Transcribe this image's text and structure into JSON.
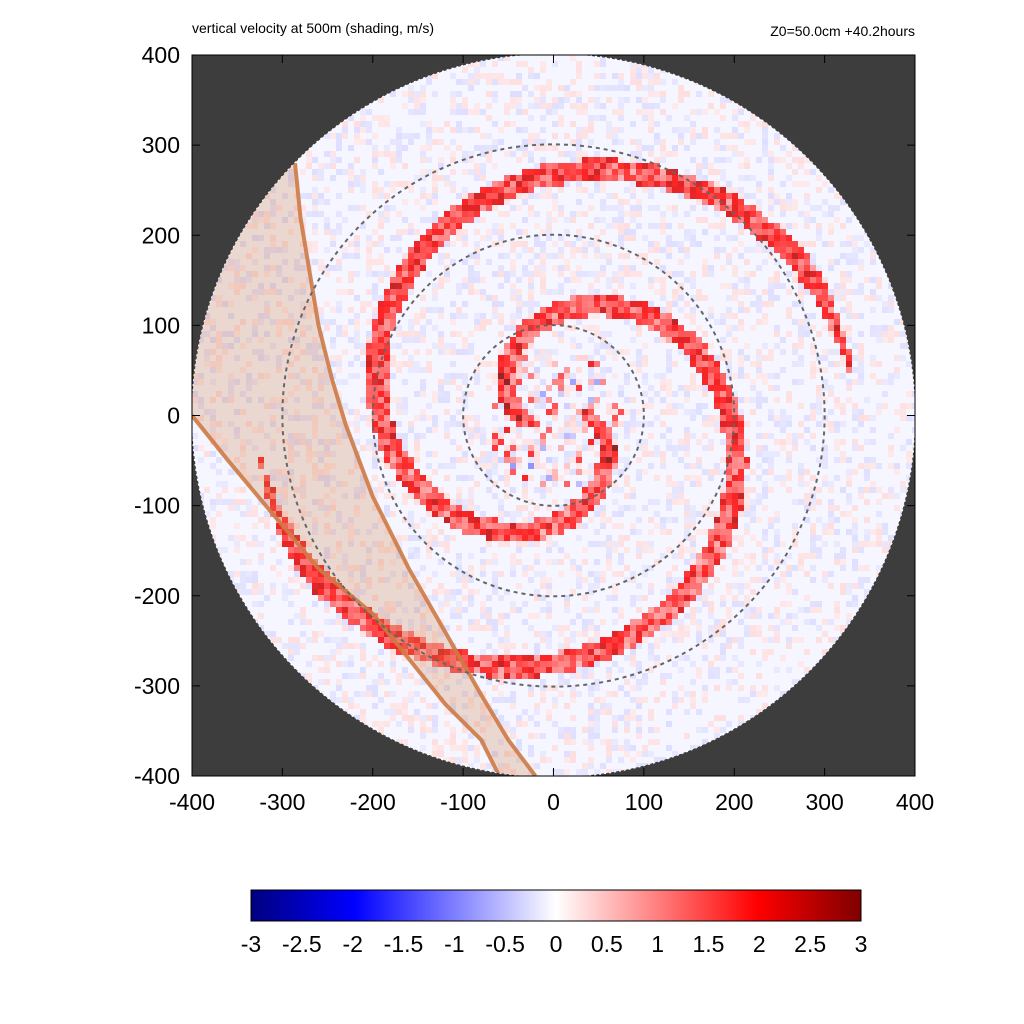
{
  "chart_data": {
    "type": "heatmap",
    "title": "vertical velocity at 500m (shading, m/s)",
    "subtitle": "Z0=50.0cm  +40.2hours",
    "xlim": [
      -400,
      400
    ],
    "ylim": [
      -400,
      400
    ],
    "x_ticks": [
      -400,
      -300,
      -200,
      -100,
      0,
      100,
      200,
      300,
      400
    ],
    "y_ticks": [
      -400,
      -300,
      -200,
      -100,
      0,
      100,
      200,
      300,
      400
    ],
    "domain_radius": 400,
    "range_rings": [
      100,
      200,
      300
    ],
    "colorbar": {
      "min": -3,
      "max": 3,
      "ticks": [
        -3,
        -2.5,
        -2,
        -1.5,
        -1,
        -0.5,
        0,
        0.5,
        1,
        1.5,
        2,
        2.5,
        3
      ],
      "colors": [
        "#00007f",
        "#0000ff",
        "#ffffff",
        "#ff0000",
        "#7f0000"
      ]
    },
    "colors": {
      "outside": "#3d3d3d",
      "ring": "#666666",
      "swath": "#cd7a45"
    },
    "swath_edges": {
      "outer": [
        [
          -286,
          280
        ],
        [
          -280,
          220
        ],
        [
          -260,
          100
        ],
        [
          -245,
          40
        ],
        [
          -230,
          -10
        ],
        [
          -200,
          -90
        ],
        [
          -160,
          -170
        ],
        [
          -120,
          -240
        ],
        [
          -80,
          -310
        ],
        [
          -50,
          -360
        ],
        [
          -20,
          -400
        ]
      ],
      "inner": [
        [
          -400,
          0
        ],
        [
          -360,
          -50
        ],
        [
          -310,
          -110
        ],
        [
          -260,
          -170
        ],
        [
          -200,
          -220
        ],
        [
          -160,
          -270
        ],
        [
          -120,
          -320
        ],
        [
          -80,
          -360
        ],
        [
          -60,
          -400
        ]
      ]
    }
  }
}
